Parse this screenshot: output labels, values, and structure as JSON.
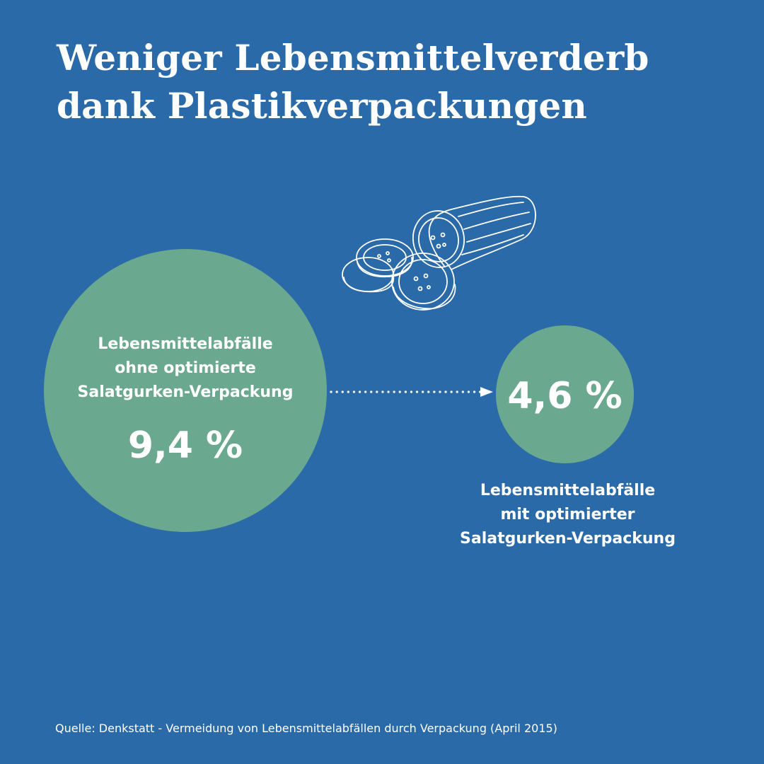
{
  "title": {
    "line1": "Weniger Lebensmittelverderb",
    "line2": "dank Plastikverpackungen"
  },
  "colors": {
    "background": "#2a6aa8",
    "circle": "#6aa88f",
    "text": "#ffffff"
  },
  "icon": "cucumber-icon",
  "chart_data": {
    "type": "bubble",
    "unit": "%",
    "values": [
      {
        "label": [
          "Lebensmittelabfälle",
          "ohne optimierte",
          "Salatgurken-Verpackung"
        ],
        "value": 9.4,
        "display": "9,4 %"
      },
      {
        "label": [
          "Lebensmittelabfälle",
          "mit optimierter",
          "Salatgurken-Verpackung"
        ],
        "value": 4.6,
        "display": "4,6 %"
      }
    ]
  },
  "source": "Quelle: Denkstatt - Vermeidung von Lebensmittelabfällen durch Verpackung (April 2015)"
}
